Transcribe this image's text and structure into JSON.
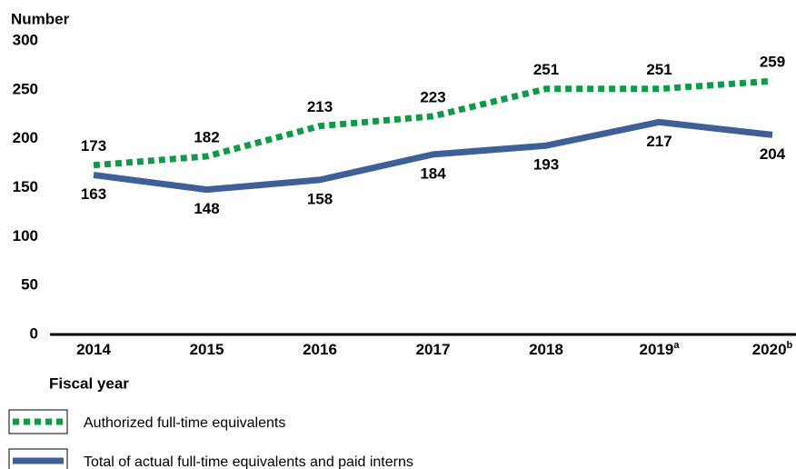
{
  "chart_data": {
    "type": "line",
    "y_label": "Number",
    "x_label": "Fiscal year",
    "categories": [
      "2014",
      "2015",
      "2016",
      "2017",
      "2018",
      "2019",
      "2020"
    ],
    "category_notes": [
      null,
      null,
      null,
      null,
      null,
      "a",
      "b"
    ],
    "series": [
      {
        "name": "Authorized full-time equivalents",
        "color": "#109a48",
        "style": "dotted",
        "values": [
          173,
          182,
          213,
          223,
          251,
          251,
          259
        ]
      },
      {
        "name": "Total of actual full-time equivalents and paid interns",
        "color": "#3e5f98",
        "style": "solid",
        "values": [
          163,
          148,
          158,
          184,
          193,
          217,
          204
        ]
      }
    ],
    "ylim": [
      0,
      300
    ],
    "yticks": [
      0,
      50,
      100,
      150,
      200,
      250,
      300
    ],
    "grid": false
  }
}
